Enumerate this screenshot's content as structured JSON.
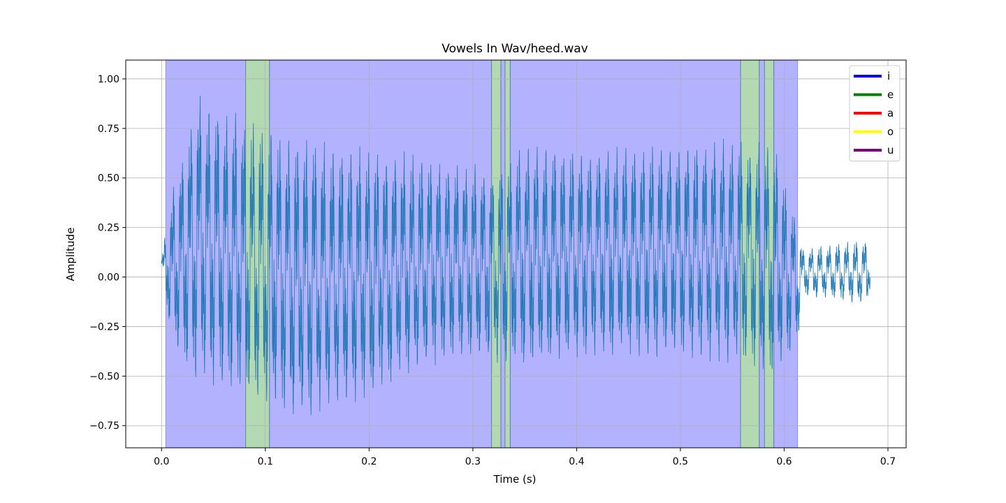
{
  "chart_data": {
    "type": "line",
    "title": "Vowels In Wav/heed.wav",
    "xlabel": "Time (s)",
    "ylabel": "Amplitude",
    "xlim": [
      -0.0345,
      0.7175
    ],
    "ylim": [
      -0.862,
      1.095
    ],
    "xticks": [
      0.0,
      0.1,
      0.2,
      0.3,
      0.4,
      0.5,
      0.6,
      0.7
    ],
    "xtick_labels": [
      "0.0",
      "0.1",
      "0.2",
      "0.3",
      "0.4",
      "0.5",
      "0.6",
      "0.7"
    ],
    "yticks": [
      1.0,
      0.75,
      0.5,
      0.25,
      0.0,
      -0.25,
      -0.5,
      -0.75
    ],
    "ytick_labels": [
      "1.00",
      "0.75",
      "0.50",
      "0.25",
      "0.00",
      "−0.25",
      "−0.50",
      "−0.75"
    ],
    "grid": true,
    "legend_position": "top-right",
    "legend": [
      {
        "label": "i",
        "color": "#0000ff"
      },
      {
        "label": "e",
        "color": "#008000"
      },
      {
        "label": "a",
        "color": "#ff0000"
      },
      {
        "label": "o",
        "color": "#ffff00"
      },
      {
        "label": "u",
        "color": "#800080"
      }
    ],
    "regions": [
      {
        "vowel": "i",
        "start": 0.004,
        "end": 0.081
      },
      {
        "vowel": "e",
        "start": 0.081,
        "end": 0.104
      },
      {
        "vowel": "i",
        "start": 0.104,
        "end": 0.318
      },
      {
        "vowel": "e",
        "start": 0.318,
        "end": 0.327
      },
      {
        "vowel": "i",
        "start": 0.327,
        "end": 0.331
      },
      {
        "vowel": "e",
        "start": 0.331,
        "end": 0.336
      },
      {
        "vowel": "i",
        "start": 0.336,
        "end": 0.558
      },
      {
        "vowel": "e",
        "start": 0.558,
        "end": 0.576
      },
      {
        "vowel": "i",
        "start": 0.576,
        "end": 0.581
      },
      {
        "vowel": "e",
        "start": 0.581,
        "end": 0.59
      },
      {
        "vowel": "i",
        "start": 0.59,
        "end": 0.613
      }
    ],
    "waveform": {
      "color": "#1f77b4",
      "start_time": 0.0,
      "end_time": 0.683,
      "pitch_hz": 117,
      "envelope_upper": [
        [
          0.0,
          0.1
        ],
        [
          0.01,
          0.45
        ],
        [
          0.025,
          0.75
        ],
        [
          0.035,
          0.95
        ],
        [
          0.06,
          0.88
        ],
        [
          0.12,
          0.75
        ],
        [
          0.18,
          0.69
        ],
        [
          0.25,
          0.64
        ],
        [
          0.27,
          0.6
        ],
        [
          0.3,
          0.6
        ],
        [
          0.32,
          0.55
        ],
        [
          0.35,
          0.7
        ],
        [
          0.4,
          0.68
        ],
        [
          0.45,
          0.68
        ],
        [
          0.5,
          0.7
        ],
        [
          0.56,
          0.72
        ],
        [
          0.59,
          0.7
        ],
        [
          0.613,
          0.3
        ],
        [
          0.618,
          0.15
        ],
        [
          0.68,
          0.2
        ],
        [
          0.683,
          0.1
        ]
      ],
      "envelope_lower": [
        [
          0.0,
          0.0
        ],
        [
          0.01,
          -0.35
        ],
        [
          0.03,
          -0.58
        ],
        [
          0.07,
          -0.62
        ],
        [
          0.1,
          -0.7
        ],
        [
          0.14,
          -0.75
        ],
        [
          0.18,
          -0.68
        ],
        [
          0.22,
          -0.58
        ],
        [
          0.27,
          -0.45
        ],
        [
          0.3,
          -0.44
        ],
        [
          0.32,
          -0.45
        ],
        [
          0.35,
          -0.5
        ],
        [
          0.4,
          -0.45
        ],
        [
          0.45,
          -0.43
        ],
        [
          0.5,
          -0.45
        ],
        [
          0.55,
          -0.46
        ],
        [
          0.575,
          -0.52
        ],
        [
          0.59,
          -0.55
        ],
        [
          0.613,
          -0.35
        ],
        [
          0.618,
          -0.1
        ],
        [
          0.68,
          -0.15
        ],
        [
          0.683,
          -0.05
        ]
      ]
    }
  }
}
